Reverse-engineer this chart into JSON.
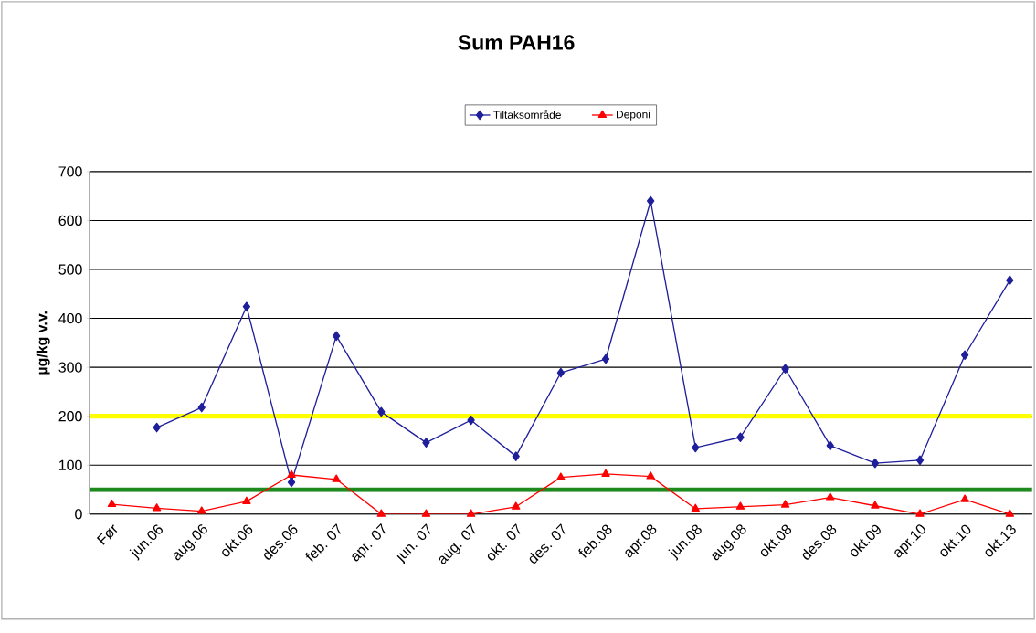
{
  "chart_data": {
    "type": "line",
    "title": "Sum PAH16",
    "ylabel": "µg/kg v.v.",
    "categories": [
      "Før",
      "jun.06",
      "aug.06",
      "okt.06",
      "des.06",
      "feb. 07",
      "apr. 07",
      "jun. 07",
      "aug. 07",
      "okt. 07",
      "des. 07",
      "feb.08",
      "apr.08",
      "jun.08",
      "aug.08",
      "okt.08",
      "des.08",
      "okt.09",
      "apr.10",
      "okt.10",
      "okt.13"
    ],
    "series": [
      {
        "name": "Tiltaksområde",
        "color": "#1f1f9c",
        "marker": "diamond",
        "values": [
          null,
          177,
          218,
          424,
          65,
          364,
          209,
          146,
          192,
          118,
          289,
          317,
          640,
          136,
          157,
          297,
          140,
          104,
          110,
          325,
          478
        ]
      },
      {
        "name": "Deponi",
        "color": "#ff0000",
        "marker": "triangle",
        "values": [
          20,
          12,
          6,
          26,
          80,
          71,
          0,
          0,
          0,
          15,
          75,
          82,
          77,
          11,
          15,
          19,
          34,
          17,
          0,
          30,
          0
        ]
      }
    ],
    "ylim": [
      0,
      700
    ],
    "yticks": [
      0,
      100,
      200,
      300,
      400,
      500,
      600,
      700
    ],
    "grid": "y",
    "legend": "top",
    "ref_lines": [
      {
        "axis": "y",
        "value": 200,
        "color": "#ffff00"
      },
      {
        "axis": "y",
        "value": 50,
        "color": "#1e8a1e"
      }
    ]
  }
}
